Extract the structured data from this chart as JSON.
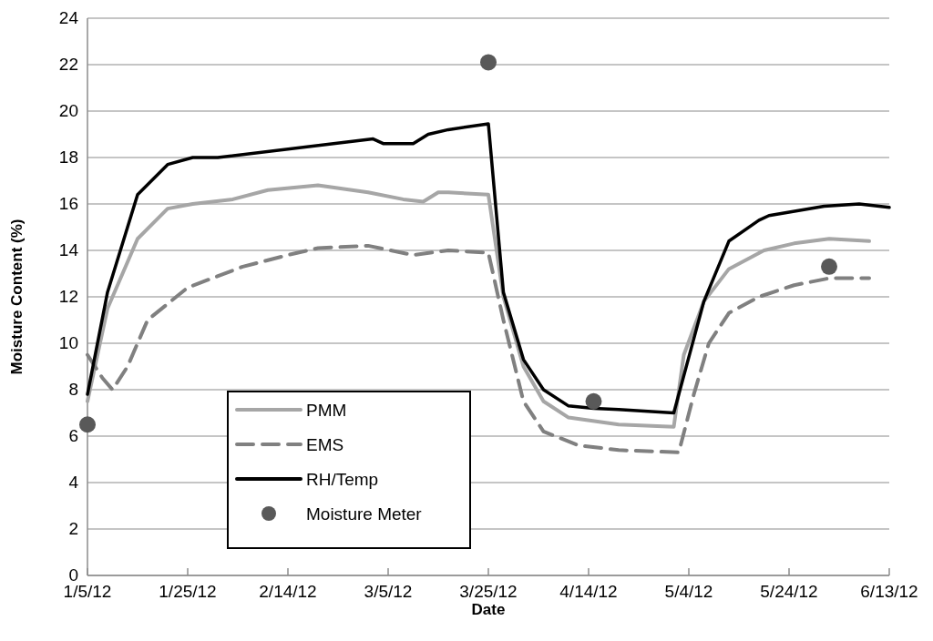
{
  "chart_data": {
    "type": "line",
    "xlabel": "Date",
    "ylabel": "Moisture Content (%)",
    "xlim": [
      "2012-01-05",
      "2012-06-13"
    ],
    "xticks": [
      {
        "value": "2012-01-05",
        "label": "1/5/12"
      },
      {
        "value": "2012-01-25",
        "label": "1/25/12"
      },
      {
        "value": "2012-02-14",
        "label": "2/14/12"
      },
      {
        "value": "2012-03-05",
        "label": "3/5/12"
      },
      {
        "value": "2012-03-25",
        "label": "3/25/12"
      },
      {
        "value": "2012-04-14",
        "label": "4/14/12"
      },
      {
        "value": "2012-05-04",
        "label": "5/4/12"
      },
      {
        "value": "2012-05-24",
        "label": "5/24/12"
      },
      {
        "value": "2012-06-13",
        "label": "6/13/12"
      }
    ],
    "ylim": [
      0,
      24
    ],
    "yticks": [
      0,
      2,
      4,
      6,
      8,
      10,
      12,
      14,
      16,
      18,
      20,
      22,
      24
    ],
    "grid": "y",
    "legend": "bottom left",
    "series": [
      {
        "name": "PMM",
        "color": "#a6a6a6",
        "line_style": "solid",
        "x": [
          "2012-01-05",
          "2012-01-09",
          "2012-01-15",
          "2012-01-21",
          "2012-01-26",
          "2012-02-03",
          "2012-02-10",
          "2012-02-20",
          "2012-03-01",
          "2012-03-08",
          "2012-03-12",
          "2012-03-15",
          "2012-03-17",
          "2012-03-25",
          "2012-03-28",
          "2012-04-01",
          "2012-04-05",
          "2012-04-10",
          "2012-04-20",
          "2012-05-01",
          "2012-05-03",
          "2012-05-07",
          "2012-05-12",
          "2012-05-19",
          "2012-05-25",
          "2012-06-01",
          "2012-06-09"
        ],
        "values": [
          7.5,
          11.5,
          14.5,
          15.8,
          16.0,
          16.2,
          16.6,
          16.8,
          16.5,
          16.2,
          16.1,
          16.5,
          16.5,
          16.4,
          12,
          9,
          7.5,
          6.8,
          6.5,
          6.4,
          9.5,
          11.8,
          13.2,
          14.0,
          14.3,
          14.5,
          14.4
        ]
      },
      {
        "name": "EMS",
        "color": "#808080",
        "line_style": "dashed",
        "x": [
          "2012-01-05",
          "2012-01-08",
          "2012-01-10",
          "2012-01-13",
          "2012-01-17",
          "2012-01-25",
          "2012-02-05",
          "2012-02-14",
          "2012-02-20",
          "2012-03-01",
          "2012-03-10",
          "2012-03-17",
          "2012-03-25",
          "2012-03-28",
          "2012-04-01",
          "2012-04-05",
          "2012-04-12",
          "2012-04-20",
          "2012-05-02",
          "2012-05-05",
          "2012-05-08",
          "2012-05-12",
          "2012-05-18",
          "2012-05-25",
          "2012-06-01",
          "2012-06-09"
        ],
        "values": [
          9.5,
          8.5,
          8.0,
          9.0,
          11.0,
          12.4,
          13.3,
          13.8,
          14.1,
          14.2,
          13.8,
          14.0,
          13.9,
          11,
          7.5,
          6.2,
          5.6,
          5.4,
          5.3,
          7.8,
          10,
          11.3,
          12.0,
          12.5,
          12.8,
          12.8
        ]
      },
      {
        "name": "RH/Temp",
        "color": "#000000",
        "line_style": "solid",
        "x": [
          "2012-01-05",
          "2012-01-09",
          "2012-01-15",
          "2012-01-21",
          "2012-01-26",
          "2012-01-31",
          "2012-03-02",
          "2012-03-04",
          "2012-03-10",
          "2012-03-13",
          "2012-03-17",
          "2012-03-25",
          "2012-03-28",
          "2012-04-01",
          "2012-04-05",
          "2012-04-10",
          "2012-04-15",
          "2012-04-20",
          "2012-05-01",
          "2012-05-07",
          "2012-05-12",
          "2012-05-18",
          "2012-05-20",
          "2012-05-31",
          "2012-06-07",
          "2012-06-13"
        ],
        "values": [
          7.8,
          12.2,
          16.4,
          17.7,
          18.0,
          18.0,
          18.8,
          18.6,
          18.6,
          19.0,
          19.2,
          19.45,
          12.2,
          9.3,
          8.0,
          7.3,
          7.2,
          7.15,
          7.0,
          11.8,
          14.4,
          15.3,
          15.5,
          15.9,
          16.0,
          15.85
        ]
      },
      {
        "name": "Moisture Meter",
        "type": "scatter",
        "marker": "circle",
        "color": "#595959",
        "x": [
          "2012-01-05",
          "2012-03-25",
          "2012-04-15",
          "2012-06-01"
        ],
        "values": [
          6.5,
          22.1,
          7.5,
          13.3
        ]
      }
    ]
  }
}
